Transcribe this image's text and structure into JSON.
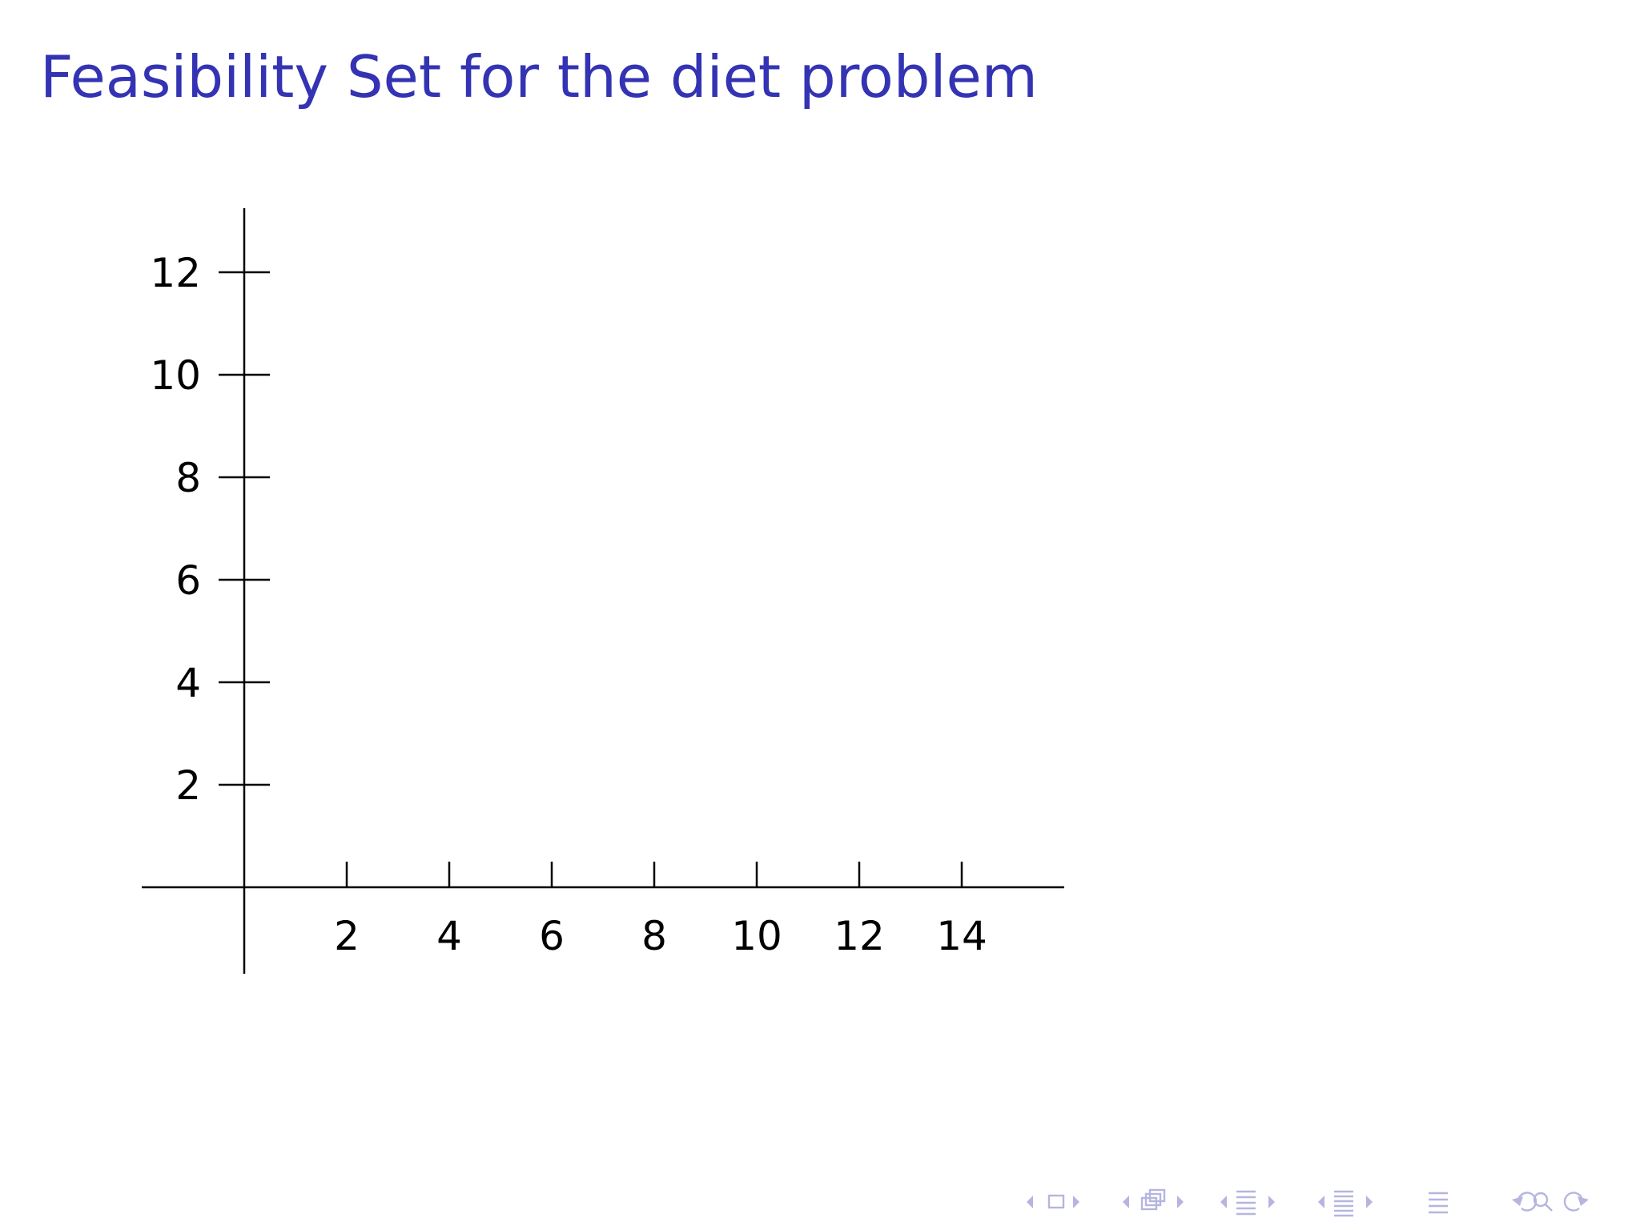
{
  "slide": {
    "title": "Feasibility Set for the diet problem",
    "title_color": "#3333b3"
  },
  "chart_data": {
    "type": "line",
    "title": "",
    "xlabel": "",
    "ylabel": "",
    "x_ticks": [
      2,
      4,
      6,
      8,
      10,
      12,
      14
    ],
    "y_ticks": [
      2,
      4,
      6,
      8,
      10,
      12
    ],
    "xlim": [
      -2,
      16
    ],
    "ylim": [
      -2,
      13
    ],
    "grid": false,
    "series": []
  },
  "navigation": {
    "icons": [
      "frame-nav-icon",
      "subsection-nav-icon",
      "section-nav-icon",
      "document-nav-icon",
      "appendix-icon",
      "back-icon",
      "search-icon",
      "forward-icon"
    ],
    "color": "#b5b5e0"
  }
}
